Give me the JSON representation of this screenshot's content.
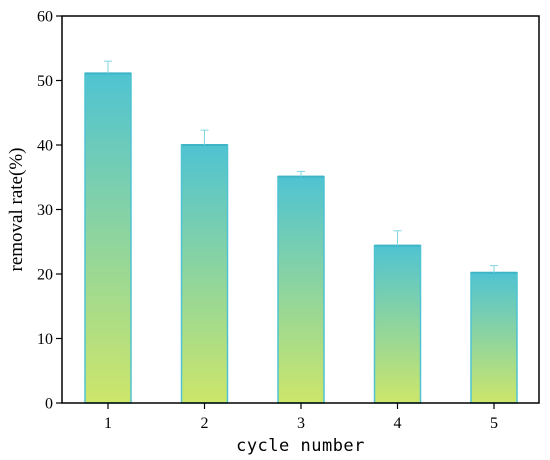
{
  "chart_data": {
    "type": "bar",
    "title": "",
    "xlabel": "cycle number",
    "ylabel": "removal rate(%)",
    "categories": [
      "1",
      "2",
      "3",
      "4",
      "5"
    ],
    "values": [
      51.1,
      40.0,
      35.1,
      24.4,
      20.2
    ],
    "error": [
      1.9,
      2.3,
      0.8,
      2.3,
      1.1
    ],
    "ylim": [
      0,
      60
    ],
    "yticks": [
      "0",
      "10",
      "20",
      "30",
      "40",
      "50",
      "60"
    ],
    "grid": false,
    "legend": "none",
    "colors": {
      "bar_top": "#4fc3d2",
      "bar_bottom": "#cde66a",
      "error_bar": "#7fd6e0",
      "axis": "#000000"
    }
  }
}
